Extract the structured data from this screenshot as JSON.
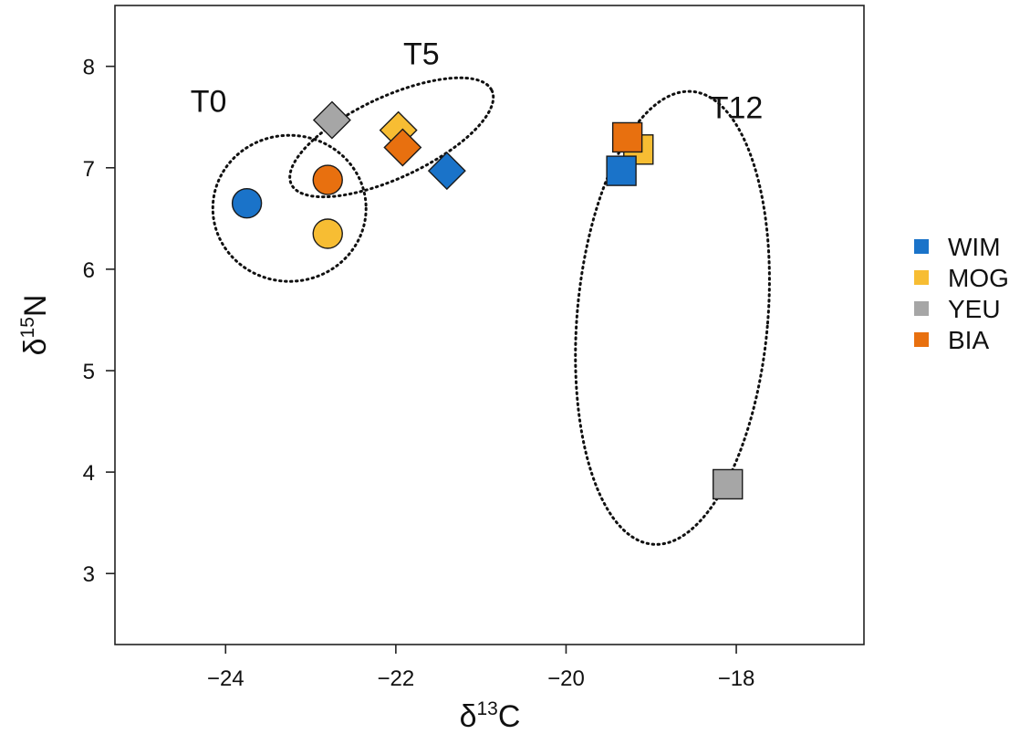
{
  "chart_data": {
    "type": "scatter",
    "xlabel_symbol": "δ",
    "xlabel_sup": "13",
    "xlabel_element": "C",
    "ylabel_symbol": "δ",
    "ylabel_sup": "15",
    "ylabel_element": "N",
    "xlim": [
      -25.3,
      -16.5
    ],
    "ylim": [
      2.3,
      8.6
    ],
    "xticks": [
      -24,
      -22,
      -20,
      -18
    ],
    "xtick_labels": [
      "−24",
      "−22",
      "−20",
      "−18"
    ],
    "yticks": [
      3,
      4,
      5,
      6,
      7,
      8
    ],
    "ytick_labels": [
      "3",
      "4",
      "5",
      "6",
      "7",
      "8"
    ],
    "grid": false,
    "legend_position": "right",
    "legend": [
      {
        "name": "WIM",
        "color": "#1a73c9"
      },
      {
        "name": "MOG",
        "color": "#f7bd33"
      },
      {
        "name": "YEU",
        "color": "#a6a6a6"
      },
      {
        "name": "BIA",
        "color": "#e8700f"
      }
    ],
    "groups": [
      {
        "label": "T0",
        "marker": "circle",
        "points": [
          {
            "series": "WIM",
            "x": -23.75,
            "y": 6.65
          },
          {
            "series": "BIA",
            "x": -22.8,
            "y": 6.88
          },
          {
            "series": "MOG",
            "x": -22.8,
            "y": 6.35
          }
        ],
        "ellipse": {
          "cx": -23.25,
          "cy": 6.6,
          "rx": 0.9,
          "ry": 0.72,
          "angle": 0
        }
      },
      {
        "label": "T5",
        "marker": "diamond",
        "points": [
          {
            "series": "YEU",
            "x": -22.75,
            "y": 7.47
          },
          {
            "series": "MOG",
            "x": -21.97,
            "y": 7.37
          },
          {
            "series": "BIA",
            "x": -21.92,
            "y": 7.2
          },
          {
            "series": "WIM",
            "x": -21.4,
            "y": 6.97
          }
        ],
        "ellipse": {
          "cx": -22.05,
          "cy": 7.3,
          "rx": 1.3,
          "ry": 0.4,
          "angle": 25
        }
      },
      {
        "label": "T12",
        "marker": "square",
        "points": [
          {
            "series": "MOG",
            "x": -19.15,
            "y": 7.18
          },
          {
            "series": "BIA",
            "x": -19.28,
            "y": 7.3
          },
          {
            "series": "WIM",
            "x": -19.35,
            "y": 6.97
          },
          {
            "series": "YEU",
            "x": -18.1,
            "y": 3.88
          }
        ],
        "ellipse": {
          "cx": -18.75,
          "cy": 5.52,
          "rx": 1.12,
          "ry": 2.24,
          "angle": -5
        }
      }
    ]
  }
}
